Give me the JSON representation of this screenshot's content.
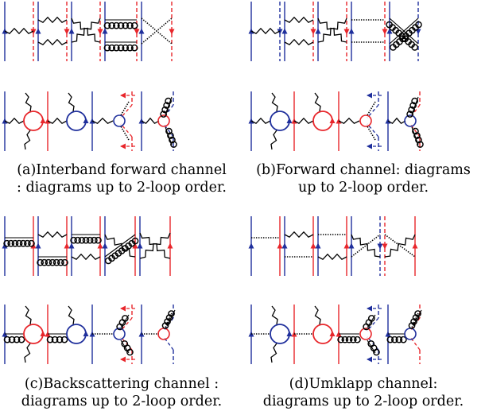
{
  "colors": {
    "red": "#e8262b",
    "blue": "#1f2f9c",
    "black": "#000000"
  },
  "panels": [
    {
      "id": "a",
      "caption_line1": "(a)Interband forward channel",
      "caption_line2": ": diagrams up to 2-loop order."
    },
    {
      "id": "b",
      "caption_line1": "(b)Forward channel: diagrams",
      "caption_line2": "up to 2-loop order."
    },
    {
      "id": "c",
      "caption_line1": "(c)Backscattering channel :",
      "caption_line2": "diagrams up to 2-loop order."
    },
    {
      "id": "d",
      "caption_line1": "(d)Umklapp channel:",
      "caption_line2": "diagrams up to 2-loop order."
    }
  ]
}
